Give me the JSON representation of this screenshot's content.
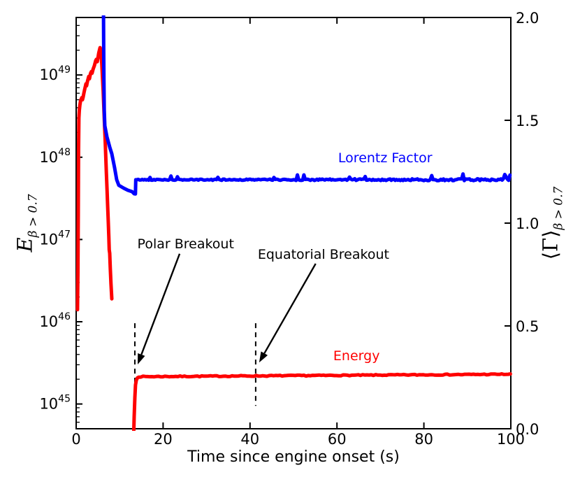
{
  "figure": {
    "background": "#ffffff"
  },
  "chart_data": {
    "type": "line",
    "title": "",
    "xlabel": "Time since engine onset (s)",
    "xlim": [
      0,
      100
    ],
    "x_ticks": [
      {
        "value": 0,
        "label": "0"
      },
      {
        "value": 20,
        "label": "20"
      },
      {
        "value": 40,
        "label": "40"
      },
      {
        "value": 60,
        "label": "60"
      },
      {
        "value": 80,
        "label": "80"
      },
      {
        "value": 100,
        "label": "100"
      }
    ],
    "left_axis": {
      "scale": "log",
      "lim": [
        5e+44,
        5e+49
      ],
      "label_symbol": "E",
      "label_subscript": "β > 0.7",
      "ticks": [
        {
          "value": 1e+45,
          "mantissa": "10",
          "exponent": "45"
        },
        {
          "value": 1e+46,
          "mantissa": "10",
          "exponent": "46"
        },
        {
          "value": 1e+47,
          "mantissa": "10",
          "exponent": "47"
        },
        {
          "value": 1e+48,
          "mantissa": "10",
          "exponent": "48"
        },
        {
          "value": 1e+49,
          "mantissa": "10",
          "exponent": "49"
        }
      ],
      "minor_ticks_per_decade": [
        2,
        3,
        4,
        5,
        6,
        7,
        8,
        9
      ]
    },
    "right_axis": {
      "scale": "linear",
      "lim": [
        0.0,
        2.0
      ],
      "label_symbol": "⟨Γ⟩",
      "label_subscript": "β > 0.7",
      "ticks": [
        {
          "value": 0.0,
          "label": "0.0"
        },
        {
          "value": 0.5,
          "label": "0.5"
        },
        {
          "value": 1.0,
          "label": "1.0"
        },
        {
          "value": 1.5,
          "label": "1.5"
        },
        {
          "value": 2.0,
          "label": "2.0"
        }
      ]
    },
    "series": [
      {
        "name": "energy",
        "label": "Energy",
        "color": "#ff0000",
        "axis": "left",
        "linewidth": 5,
        "label_anchor": {
          "t": 64.5,
          "value": 3.83e+45
        },
        "segments": [
          [
            [
              0.3,
              1.4e+46
            ],
            [
              0.4,
              4e+46
            ],
            [
              0.48,
              2e+47
            ],
            [
              0.55,
              1.2e+48
            ],
            [
              0.62,
              3e+48
            ],
            [
              0.72,
              3.7e+48
            ],
            [
              0.85,
              4.3e+48
            ],
            [
              1.0,
              4.8e+48
            ],
            [
              1.15,
              5.1e+48
            ],
            [
              1.3,
              5.3e+48
            ],
            [
              1.45,
              5e+48
            ],
            [
              1.6,
              5.4e+48
            ],
            [
              1.8,
              6.1e+48
            ],
            [
              2.0,
              6.8e+48
            ],
            [
              2.25,
              7.8e+48
            ],
            [
              2.4,
              7.4e+48
            ],
            [
              2.6,
              8.4e+48
            ],
            [
              2.9,
              9.6e+48
            ],
            [
              3.05,
              9e+48
            ],
            [
              3.3,
              1.04e+49
            ],
            [
              3.5,
              1.1e+49
            ],
            [
              3.65,
              1.05e+49
            ],
            [
              3.9,
              1.18e+49
            ],
            [
              4.2,
              1.3e+49
            ],
            [
              4.5,
              1.5e+49
            ],
            [
              4.66,
              1.55e+49
            ],
            [
              4.85,
              1.45e+49
            ],
            [
              5.0,
              1.6e+49
            ],
            [
              5.2,
              1.85e+49
            ],
            [
              5.4,
              2.05e+49
            ],
            [
              5.5,
              2.15e+49
            ],
            [
              5.62,
              2.05e+49
            ],
            [
              5.75,
              1.75e+49
            ],
            [
              5.9,
              1.35e+49
            ],
            [
              6.05,
              9.5e+48
            ],
            [
              6.2,
              6.5e+48
            ],
            [
              6.35,
              4.2e+48
            ],
            [
              6.5,
              2.7e+48
            ],
            [
              6.65,
              1.7e+48
            ],
            [
              6.8,
              1.05e+48
            ],
            [
              6.95,
              6.5e+47
            ],
            [
              7.1,
              4e+47
            ],
            [
              7.25,
              2.5e+47
            ],
            [
              7.4,
              1.6e+47
            ],
            [
              7.5,
              1.1e+47
            ],
            [
              7.6,
              7.5e+46
            ],
            [
              7.72,
              6.8e+46
            ],
            [
              7.85,
              4.5e+46
            ],
            [
              8.0,
              2.9e+46
            ],
            [
              8.2,
              1.9e+46
            ]
          ],
          [
            [
              13.25,
              4.5e+44
            ],
            [
              13.35,
              7e+44
            ],
            [
              13.5,
              1.2e+45
            ],
            [
              13.65,
              1.7e+45
            ],
            [
              13.85,
              1.95e+45
            ],
            [
              14.1,
              2.08e+45
            ]
          ]
        ],
        "plateau": {
          "from": 14.4,
          "to": 100,
          "log_start": 45.332,
          "log_end": 45.362,
          "dt": 0.5,
          "amp_log": 0.006,
          "seed": 7
        }
      },
      {
        "name": "lorentz_factor",
        "label": "Lorentz Factor",
        "color": "#0000ff",
        "axis": "right",
        "linewidth": 5,
        "label_anchor": {
          "t": 71.1,
          "value": 1.316
        },
        "points": [
          [
            6.27,
            2.1
          ],
          [
            6.32,
            1.9
          ],
          [
            6.38,
            1.7
          ],
          [
            6.47,
            1.55
          ],
          [
            6.59,
            1.473
          ],
          [
            7.07,
            1.42
          ],
          [
            7.72,
            1.37
          ],
          [
            8.2,
            1.337
          ],
          [
            8.84,
            1.269
          ],
          [
            9.32,
            1.211
          ],
          [
            9.81,
            1.184
          ],
          [
            10.93,
            1.17
          ],
          [
            11.9,
            1.16
          ],
          [
            12.86,
            1.153
          ],
          [
            13.34,
            1.143
          ],
          [
            13.63,
            1.142
          ],
          [
            13.72,
            1.211
          ]
        ],
        "plateau": {
          "from": 14.0,
          "to": 100,
          "base": 1.211,
          "dt": 0.3,
          "amp": 0.01,
          "spike_prob": 0.1,
          "spike_max": 0.034,
          "seed": 42
        }
      }
    ],
    "annotations": [
      {
        "text": "Polar Breakout",
        "anchor": {
          "t": 25.2,
          "value": 8.8e+46
        },
        "arrow": {
          "from_t": 23.8,
          "from_value": 6.7e+46,
          "to_t": 14.15,
          "to_value": 3.03e+45
        },
        "dashed_line": {
          "t": 13.5,
          "value_top": 9.6e+45,
          "value_bottom": 6.5e+44
        }
      },
      {
        "text": "Equatorial Breakout",
        "anchor": {
          "t": 56.9,
          "value": 6.6e+46
        },
        "arrow": {
          "from_t": 55.1,
          "from_value": 5.08e+46,
          "to_t": 42.1,
          "to_value": 3.2e+45
        },
        "dashed_line": {
          "t": 41.3,
          "value_top": 9.6e+45,
          "value_bottom": 9.5e+44
        }
      }
    ]
  }
}
